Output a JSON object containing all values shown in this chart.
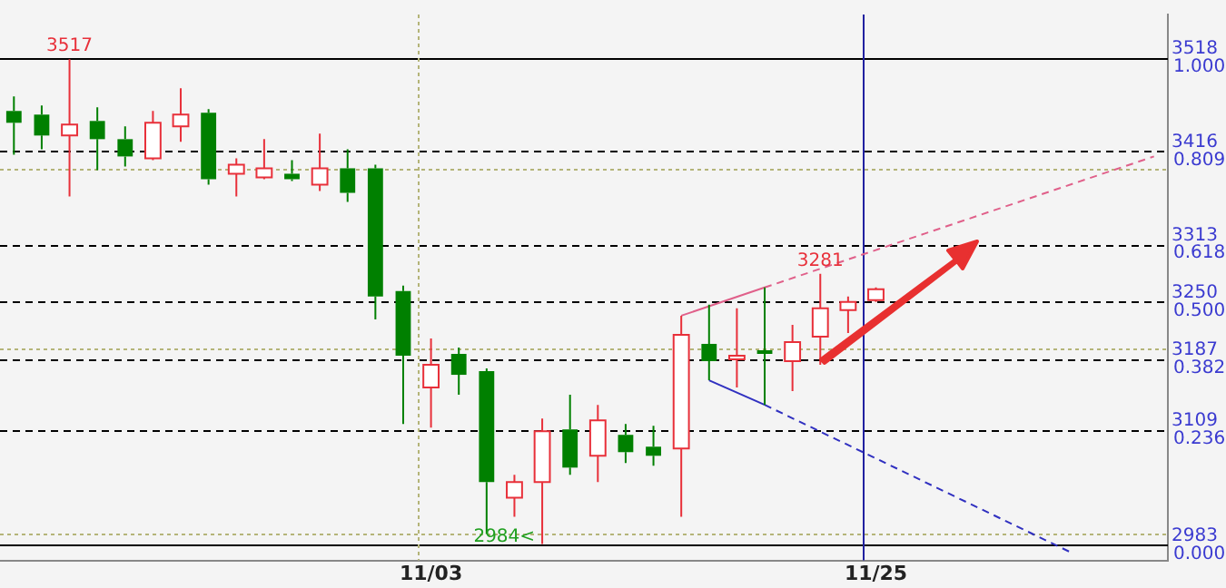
{
  "chart_data": {
    "type": "candlestick",
    "categories": [
      null,
      null,
      null,
      null,
      null,
      null,
      null,
      null,
      null,
      null,
      null,
      null,
      null,
      null,
      null,
      "11/03",
      null,
      null,
      null,
      null,
      null,
      null,
      null,
      null,
      null,
      null,
      null,
      null,
      null,
      null,
      null,
      "11/25",
      null,
      null,
      null,
      null,
      null,
      null,
      null,
      null,
      null,
      null
    ],
    "ohlc": [
      [
        3460,
        3476,
        3412,
        3447
      ],
      [
        3456,
        3466,
        3418,
        3433
      ],
      [
        3433,
        3517,
        3366,
        3445
      ],
      [
        3449,
        3464,
        3395,
        3429
      ],
      [
        3429,
        3443,
        3399,
        3410
      ],
      [
        3408,
        3460,
        3406,
        3447
      ],
      [
        3443,
        3485,
        3426,
        3456
      ],
      [
        3458,
        3462,
        3379,
        3385
      ],
      [
        3391,
        3408,
        3366,
        3401
      ],
      [
        3387,
        3429,
        3385,
        3397
      ],
      [
        3391,
        3406,
        3383,
        3385
      ],
      [
        3379,
        3435,
        3372,
        3397
      ],
      [
        3397,
        3418,
        3360,
        3370
      ],
      [
        3397,
        3401,
        3231,
        3256
      ],
      [
        3262,
        3268,
        3116,
        3191
      ],
      [
        3156,
        3210,
        3112,
        3181
      ],
      [
        3193,
        3200,
        3148,
        3170
      ],
      [
        3174,
        3177,
        2995,
        3052
      ],
      [
        3035,
        3060,
        3014,
        3052
      ],
      [
        3052,
        3122,
        2984,
        3108
      ],
      [
        3110,
        3148,
        3060,
        3068
      ],
      [
        3081,
        3137,
        3052,
        3120
      ],
      [
        3104,
        3116,
        3073,
        3085
      ],
      [
        3091,
        3114,
        3070,
        3081
      ],
      [
        3089,
        3235,
        3014,
        3214
      ],
      [
        3204,
        3247,
        3164,
        3185
      ],
      [
        3187,
        3243,
        3156,
        3191
      ],
      [
        3197,
        3266,
        3137,
        3193
      ],
      [
        3185,
        3225,
        3152,
        3206
      ],
      [
        3212,
        3281,
        3181,
        3243
      ],
      [
        3241,
        3256,
        3216,
        3250
      ],
      [
        3252,
        3266,
        3250,
        3264
      ],
      null,
      null,
      null,
      null,
      null,
      null,
      null,
      null,
      null,
      null
    ],
    "series": [
      {
        "type": "line",
        "color": "#e0608a",
        "line_style": "solid",
        "values": [
          null,
          null,
          null,
          null,
          null,
          null,
          null,
          null,
          null,
          null,
          null,
          null,
          null,
          null,
          null,
          null,
          null,
          null,
          null,
          null,
          null,
          null,
          null,
          null,
          3235,
          null,
          null,
          3266,
          null,
          null,
          null,
          null,
          null,
          null,
          null,
          null,
          null,
          null,
          null,
          null,
          null,
          null
        ]
      },
      {
        "type": "line",
        "color": "#e0608a",
        "line_style": "dashed",
        "values": [
          null,
          null,
          null,
          null,
          null,
          null,
          null,
          null,
          null,
          null,
          null,
          null,
          null,
          null,
          null,
          null,
          null,
          null,
          null,
          null,
          null,
          null,
          null,
          null,
          null,
          null,
          null,
          3266,
          null,
          null,
          null,
          null,
          null,
          null,
          null,
          null,
          null,
          null,
          null,
          null,
          null,
          3410
        ]
      },
      {
        "type": "line",
        "color": "#3030c0",
        "line_style": "solid",
        "values": [
          null,
          null,
          null,
          null,
          null,
          null,
          null,
          null,
          null,
          null,
          null,
          null,
          null,
          null,
          null,
          null,
          null,
          null,
          null,
          null,
          null,
          null,
          null,
          null,
          null,
          3164,
          null,
          3137,
          null,
          null,
          null,
          null,
          null,
          null,
          null,
          null,
          null,
          null,
          null,
          null,
          null,
          null
        ]
      },
      {
        "type": "line",
        "color": "#3030c0",
        "line_style": "dashed",
        "values": [
          null,
          null,
          null,
          null,
          null,
          null,
          null,
          null,
          null,
          null,
          null,
          null,
          null,
          null,
          null,
          null,
          null,
          null,
          null,
          null,
          null,
          null,
          null,
          null,
          null,
          null,
          null,
          3137,
          null,
          null,
          null,
          null,
          null,
          null,
          null,
          null,
          null,
          null,
          2975,
          null,
          null,
          null
        ]
      }
    ],
    "ylim": [
      2966,
      3566
    ],
    "yticks": [
      2983,
      3109,
      3187,
      3250,
      3313,
      3416,
      3518
    ],
    "y2lim": [
      -0.0318,
      1.0897
    ],
    "y2ticks": [
      {
        "value": 0,
        "label": "0.000"
      },
      {
        "value": 0.236,
        "label": "0.236"
      },
      {
        "value": 0.382,
        "label": "0.382"
      },
      {
        "value": 0.5,
        "label": "0.500"
      },
      {
        "value": 0.618,
        "label": "0.618"
      },
      {
        "value": 0.809,
        "label": "0.809"
      },
      {
        "value": 1,
        "label": "1.000"
      }
    ],
    "ref_lines": [
      {
        "axis": "y",
        "value": 3518,
        "color": "#000000",
        "line_style": "solid"
      },
      {
        "axis": "y",
        "value": 3416,
        "color": "#000000",
        "line_style": "dashed"
      },
      {
        "axis": "y",
        "value": 3313,
        "color": "#000000",
        "line_style": "dashed"
      },
      {
        "axis": "y",
        "value": 3250,
        "color": "#000000",
        "line_style": "dashed"
      },
      {
        "axis": "y",
        "value": 3187,
        "color": "#000000",
        "line_style": "dashed"
      },
      {
        "axis": "y",
        "value": 3109,
        "color": "#000000",
        "line_style": "dashed"
      },
      {
        "axis": "y",
        "value": 2983,
        "color": "#000000",
        "line_style": "solid"
      },
      {
        "axis": "y",
        "value": 3397,
        "color": "#b4b478",
        "line_style": "dotted"
      },
      {
        "axis": "y",
        "value": 3199,
        "color": "#b4b478",
        "line_style": "dotted"
      },
      {
        "axis": "y",
        "value": 2996,
        "color": "#b4b478",
        "line_style": "dotted"
      },
      {
        "axis": "x",
        "value": "11/03",
        "color": "#b4b478",
        "line_style": "dotted"
      },
      {
        "axis": "x",
        "value": "11/25",
        "color": "#2020a0",
        "line_style": "solid"
      }
    ],
    "annotations": [
      {
        "text": "3517",
        "y": 3517
      },
      {
        "text": "3281",
        "y": 3281
      },
      {
        "text": "2984<",
        "y": 2984
      }
    ],
    "grid": false,
    "legend": false
  }
}
